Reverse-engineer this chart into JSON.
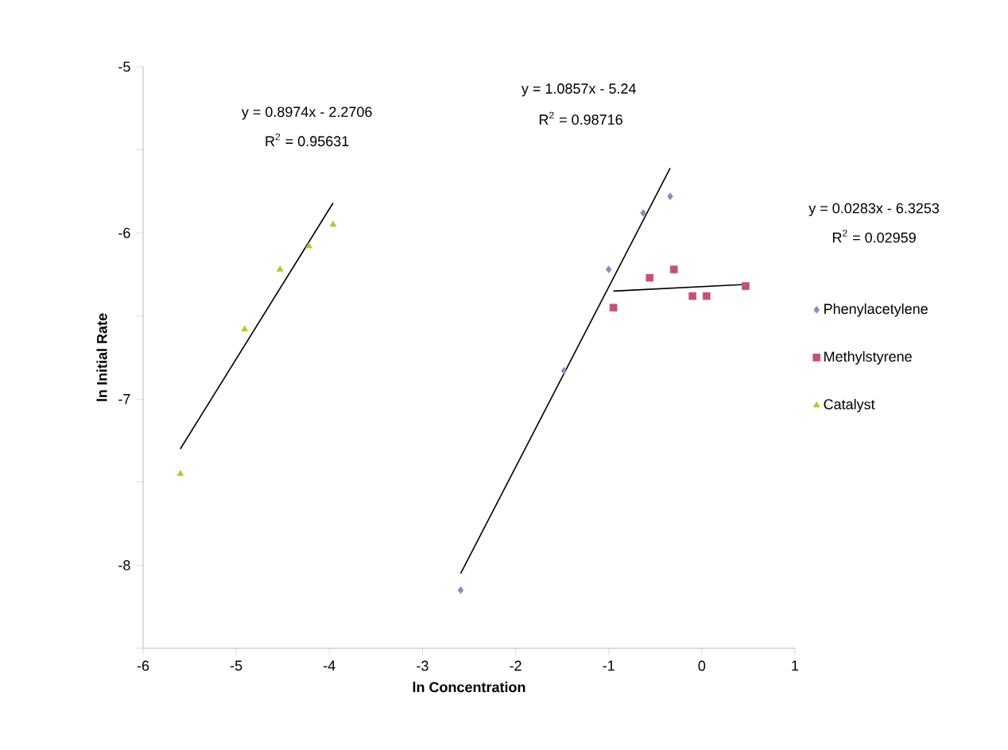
{
  "chart_data": {
    "type": "scatter",
    "xlabel": "ln Concentration",
    "ylabel": "ln Initial Rate",
    "xlim": [
      -6,
      1
    ],
    "ylim": [
      -8.5,
      -5
    ],
    "xticks": [
      -6,
      -5,
      -4,
      -3,
      -2,
      -1,
      0,
      1
    ],
    "yticks": [
      {
        "value": -8.5,
        "label": null
      },
      -8,
      {
        "value": -7.5,
        "label": null
      },
      -7,
      {
        "value": -6.5,
        "label": null
      },
      -6,
      {
        "value": -5.5,
        "label": null
      },
      -5
    ],
    "legend": "right",
    "grid": false,
    "series": [
      {
        "name": "Phenylacetylene",
        "marker": "diamond",
        "color": "#7f8fc0",
        "x": [
          -2.59,
          -1.48,
          -1.0,
          -0.63,
          -0.34
        ],
        "values": [
          -8.15,
          -6.83,
          -6.22,
          -5.88,
          -5.78
        ]
      },
      {
        "name": "Methylstyrene",
        "marker": "square",
        "color": "#c8506e",
        "x": [
          -0.95,
          -0.56,
          -0.3,
          -0.1,
          0.05,
          0.47
        ],
        "values": [
          -6.45,
          -6.27,
          -6.22,
          -6.38,
          -6.38,
          -6.32
        ]
      },
      {
        "name": "Catalyst",
        "marker": "triangle",
        "color": "#a8cc30",
        "x": [
          -5.6,
          -4.91,
          -4.53,
          -4.22,
          -3.96
        ],
        "values": [
          -7.45,
          -6.58,
          -6.22,
          -6.08,
          -5.95
        ]
      },
      {
        "type": "line",
        "marker": "none",
        "color": "#000000",
        "x": [
          -2.59,
          -0.34
        ],
        "values": [
          -8.05,
          -5.61
        ]
      },
      {
        "type": "line",
        "marker": "none",
        "color": "#000000",
        "x": [
          -0.95,
          0.47
        ],
        "values": [
          -6.35,
          -6.31
        ]
      },
      {
        "type": "line",
        "marker": "none",
        "color": "#000000",
        "x": [
          -5.6,
          -3.96
        ],
        "values": [
          -7.3,
          -5.82
        ]
      }
    ],
    "annotations": [
      "y = 0.8974x - 2.2706",
      "R$^{2}$ = 0.95631",
      "y = 1.0857x - 5.24",
      "R$^{2}$ = 0.98716",
      "y = 0.0283x - 6.3253",
      "R$^{2}$ = 0.02959"
    ]
  }
}
